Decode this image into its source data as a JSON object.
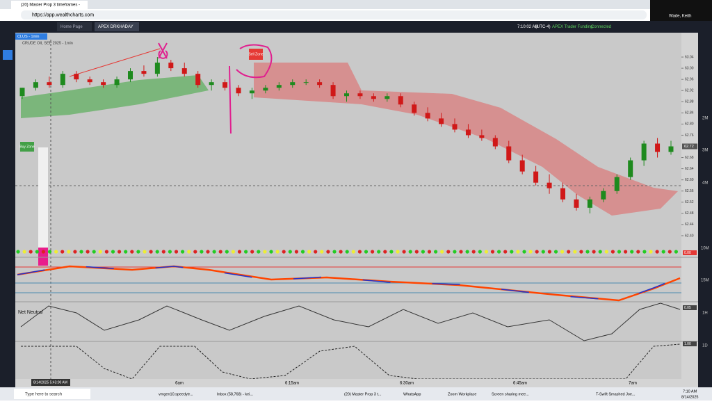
{
  "browser": {
    "tab_title": "(20) Master Prop 3 timeframes -",
    "url": "https://app.wealthcharts.com"
  },
  "app": {
    "tabs": [
      "Home Page",
      "APEX DRKHADAY"
    ],
    "clock": "7:10:02 AM",
    "timezone": "(UTC-4)",
    "broker": "APEX Trader Funding",
    "status": "Connected",
    "user": "Wade, Keith",
    "symbol_tab": "CLUS - 1min",
    "symbol_title": "CRUDE OIL SEP 2025 - 1min"
  },
  "chart": {
    "ylim": [
      62.36,
      63.08
    ],
    "yticks": [
      {
        "value": 63.04,
        "label": "63.04"
      },
      {
        "value": 63,
        "label": "63.00"
      },
      {
        "value": 62.96,
        "label": "62.96"
      },
      {
        "value": 62.92,
        "label": "62.92"
      },
      {
        "value": 62.88,
        "label": "62.88"
      },
      {
        "value": 62.84,
        "label": "62.84"
      },
      {
        "value": 62.8,
        "label": "62.80"
      },
      {
        "value": 62.76,
        "label": "62.76"
      },
      {
        "value": 62.68,
        "label": "62.68"
      },
      {
        "value": 62.64,
        "label": "62.64"
      },
      {
        "value": 62.6,
        "label": "62.60"
      },
      {
        "value": 62.56,
        "label": "62.56"
      },
      {
        "value": 62.52,
        "label": "62.52"
      },
      {
        "value": 62.48,
        "label": "62.48"
      },
      {
        "value": 62.44,
        "label": "62.44"
      },
      {
        "value": 62.4,
        "label": "62.40"
      }
    ],
    "last_price": {
      "value": 62.72,
      "label": "62.72"
    },
    "candles": [
      [
        62.9,
        62.93,
        62.89,
        62.93
      ],
      [
        62.93,
        62.96,
        62.92,
        62.95
      ],
      [
        62.95,
        62.97,
        62.93,
        62.94
      ],
      [
        62.94,
        62.99,
        62.93,
        62.98
      ],
      [
        62.98,
        62.99,
        62.95,
        62.96
      ],
      [
        62.96,
        62.97,
        62.94,
        62.95
      ],
      [
        62.95,
        62.96,
        62.93,
        62.94
      ],
      [
        62.94,
        62.97,
        62.93,
        62.96
      ],
      [
        62.96,
        63.0,
        62.95,
        62.99
      ],
      [
        62.99,
        63.01,
        62.97,
        62.98
      ],
      [
        62.98,
        63.04,
        62.97,
        63.02
      ],
      [
        63.02,
        63.03,
        62.99,
        63.0
      ],
      [
        63.0,
        63.02,
        62.97,
        62.98
      ],
      [
        62.98,
        62.99,
        62.93,
        62.94
      ],
      [
        62.94,
        62.96,
        62.92,
        62.95
      ],
      [
        62.95,
        62.96,
        62.92,
        62.93
      ],
      [
        62.93,
        62.94,
        62.9,
        62.91
      ],
      [
        62.91,
        62.93,
        62.89,
        62.92
      ],
      [
        62.92,
        62.94,
        62.91,
        62.93
      ],
      [
        62.93,
        62.95,
        62.92,
        62.94
      ],
      [
        62.94,
        62.96,
        62.93,
        62.95
      ],
      [
        62.95,
        62.96,
        62.94,
        62.95
      ],
      [
        62.95,
        62.96,
        62.93,
        62.94
      ],
      [
        62.94,
        62.95,
        62.89,
        62.9
      ],
      [
        62.9,
        62.92,
        62.88,
        62.91
      ],
      [
        62.91,
        62.92,
        62.89,
        62.9
      ],
      [
        62.9,
        62.91,
        62.88,
        62.89
      ],
      [
        62.89,
        62.91,
        62.88,
        62.9
      ],
      [
        62.9,
        62.91,
        62.86,
        62.87
      ],
      [
        62.87,
        62.88,
        62.83,
        62.84
      ],
      [
        62.84,
        62.86,
        62.81,
        62.82
      ],
      [
        62.82,
        62.84,
        62.79,
        62.8
      ],
      [
        62.8,
        62.82,
        62.77,
        62.78
      ],
      [
        62.78,
        62.8,
        62.75,
        62.76
      ],
      [
        62.76,
        62.78,
        62.74,
        62.75
      ],
      [
        62.75,
        62.76,
        62.71,
        62.72
      ],
      [
        62.72,
        62.74,
        62.66,
        62.67
      ],
      [
        62.67,
        62.69,
        62.62,
        62.63
      ],
      [
        62.63,
        62.65,
        62.58,
        62.59
      ],
      [
        62.59,
        62.62,
        62.55,
        62.57
      ],
      [
        62.57,
        62.59,
        62.52,
        62.53
      ],
      [
        62.53,
        62.55,
        62.49,
        62.5
      ],
      [
        62.5,
        62.54,
        62.48,
        62.53
      ],
      [
        62.53,
        62.57,
        62.52,
        62.56
      ],
      [
        62.56,
        62.62,
        62.55,
        62.61
      ],
      [
        62.61,
        62.68,
        62.6,
        62.67
      ],
      [
        62.67,
        62.74,
        62.65,
        62.73
      ],
      [
        62.73,
        62.75,
        62.68,
        62.7
      ],
      [
        62.7,
        62.74,
        62.69,
        62.72
      ]
    ],
    "time_labels": [
      "6am",
      "6:15am",
      "6:30am",
      "6:45am",
      "7am"
    ],
    "cursor_date": "8/14/2025 5:43:00 AM",
    "annotations": [
      "Sell Zone",
      "Buy Zone"
    ],
    "panel_labels": [
      "Net Neutral",
      "0.00",
      "0.05",
      "1.00"
    ],
    "volume_labels": [
      "2M",
      "3M",
      "4M",
      "10M",
      "15M",
      "1H",
      "1D"
    ]
  },
  "taskbar": {
    "search": "Type here to search",
    "apps": [
      "vmgen10.speedytr...",
      "Inbox (58,768) - kei...",
      "(20) Master Prop 3 t...",
      "WhatsApp",
      "Zoom Workplace",
      "Screen sharing mee..."
    ],
    "news": "T-Swift Smashed Joe...",
    "time": "7:10 AM",
    "date": "8/14/2025"
  }
}
